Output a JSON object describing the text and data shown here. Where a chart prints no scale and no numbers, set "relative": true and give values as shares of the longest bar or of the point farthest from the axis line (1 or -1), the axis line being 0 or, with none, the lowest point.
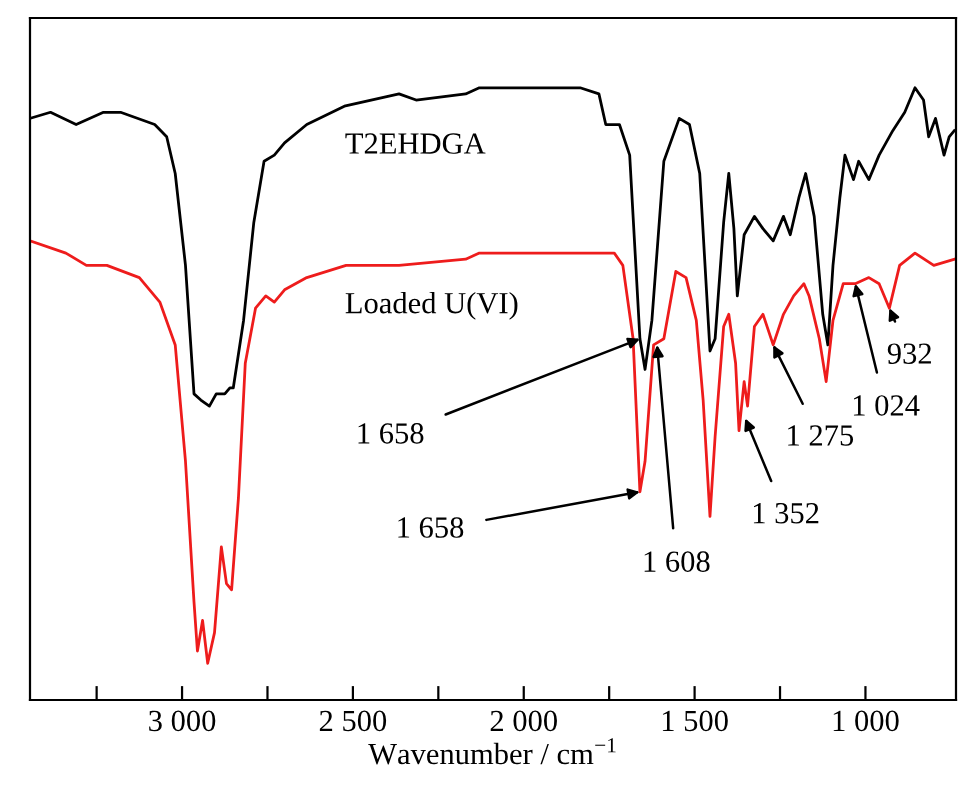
{
  "chart_data": {
    "type": "line",
    "relative": true,
    "xlabel": "Wavenumber / cm$^{−1}$",
    "tick_labels": "x",
    "xlim": [
      3445,
      735
    ],
    "xticks": [
      {
        "value": 3250,
        "label": null
      },
      {
        "value": 3000,
        "label": "3 000"
      },
      {
        "value": 2750,
        "label": null
      },
      {
        "value": 2500,
        "label": "2 500"
      },
      {
        "value": 2250,
        "label": null
      },
      {
        "value": 2000,
        "label": "2 000"
      },
      {
        "value": 1750,
        "label": null
      },
      {
        "value": 1500,
        "label": "1 500"
      },
      {
        "value": 1250,
        "label": null
      },
      {
        "value": 1000,
        "label": "1 000"
      }
    ],
    "series": [
      {
        "name": "T2EHDGA",
        "color": "#000000",
        "x": [
          3445,
          3385,
          3310,
          3230,
          3180,
          3080,
          3045,
          3020,
          2990,
          2965,
          2945,
          2920,
          2900,
          2875,
          2860,
          2850,
          2820,
          2790,
          2760,
          2730,
          2700,
          2635,
          2525,
          2365,
          2315,
          2170,
          2130,
          1835,
          1780,
          1760,
          1720,
          1690,
          1660,
          1645,
          1625,
          1590,
          1545,
          1515,
          1485,
          1455,
          1440,
          1415,
          1400,
          1385,
          1375,
          1355,
          1325,
          1300,
          1270,
          1240,
          1220,
          1195,
          1175,
          1150,
          1125,
          1110,
          1095,
          1075,
          1060,
          1035,
          1020,
          990,
          960,
          920,
          885,
          855,
          830,
          815,
          795,
          770,
          755,
          740
        ],
        "values": [
          0.95,
          0.96,
          0.94,
          0.96,
          0.96,
          0.94,
          0.92,
          0.86,
          0.71,
          0.5,
          0.49,
          0.48,
          0.5,
          0.5,
          0.51,
          0.51,
          0.62,
          0.78,
          0.88,
          0.89,
          0.91,
          0.94,
          0.97,
          0.99,
          0.98,
          0.99,
          1.0,
          1.0,
          0.99,
          0.94,
          0.94,
          0.89,
          0.59,
          0.54,
          0.62,
          0.88,
          0.95,
          0.94,
          0.86,
          0.57,
          0.59,
          0.78,
          0.86,
          0.77,
          0.66,
          0.76,
          0.79,
          0.77,
          0.75,
          0.79,
          0.76,
          0.82,
          0.86,
          0.79,
          0.63,
          0.58,
          0.71,
          0.82,
          0.89,
          0.85,
          0.88,
          0.85,
          0.89,
          0.93,
          0.96,
          1.0,
          0.98,
          0.92,
          0.95,
          0.89,
          0.92,
          0.93
        ]
      },
      {
        "name": "Loaded U(VI)",
        "color": "#ee1c1c",
        "x": [
          3445,
          3340,
          3280,
          3220,
          3125,
          3065,
          3020,
          2990,
          2965,
          2955,
          2940,
          2925,
          2905,
          2885,
          2870,
          2855,
          2835,
          2815,
          2785,
          2755,
          2730,
          2700,
          2635,
          2520,
          2365,
          2170,
          2130,
          1735,
          1710,
          1680,
          1660,
          1645,
          1620,
          1590,
          1555,
          1525,
          1495,
          1475,
          1455,
          1440,
          1415,
          1400,
          1380,
          1370,
          1355,
          1345,
          1325,
          1300,
          1270,
          1240,
          1210,
          1180,
          1165,
          1135,
          1115,
          1095,
          1065,
          1030,
          990,
          960,
          930,
          900,
          855,
          800,
          740
        ],
        "values": [
          0.75,
          0.73,
          0.71,
          0.71,
          0.69,
          0.65,
          0.58,
          0.39,
          0.16,
          0.08,
          0.13,
          0.06,
          0.11,
          0.25,
          0.19,
          0.18,
          0.33,
          0.55,
          0.64,
          0.66,
          0.65,
          0.67,
          0.69,
          0.71,
          0.71,
          0.72,
          0.73,
          0.73,
          0.71,
          0.59,
          0.34,
          0.39,
          0.58,
          0.59,
          0.7,
          0.69,
          0.62,
          0.49,
          0.3,
          0.43,
          0.61,
          0.63,
          0.55,
          0.44,
          0.52,
          0.48,
          0.61,
          0.63,
          0.58,
          0.63,
          0.66,
          0.68,
          0.66,
          0.59,
          0.52,
          0.62,
          0.68,
          0.68,
          0.69,
          0.68,
          0.64,
          0.71,
          0.73,
          0.71,
          0.72
        ]
      }
    ],
    "annotations": [
      {
        "text": "1 658",
        "x": 1660,
        "y": 0.59
      },
      {
        "text": "1 658",
        "x": 1660,
        "y": 0.34
      },
      {
        "text": "1 608",
        "x": 1610,
        "y": 0.58
      },
      {
        "text": "1 352",
        "x": 1352,
        "y": 0.46
      },
      {
        "text": "1 275",
        "x": 1270,
        "y": 0.58
      },
      {
        "text": "1 024",
        "x": 1030,
        "y": 0.68
      },
      {
        "text": "932",
        "x": 930,
        "y": 0.64
      }
    ]
  }
}
